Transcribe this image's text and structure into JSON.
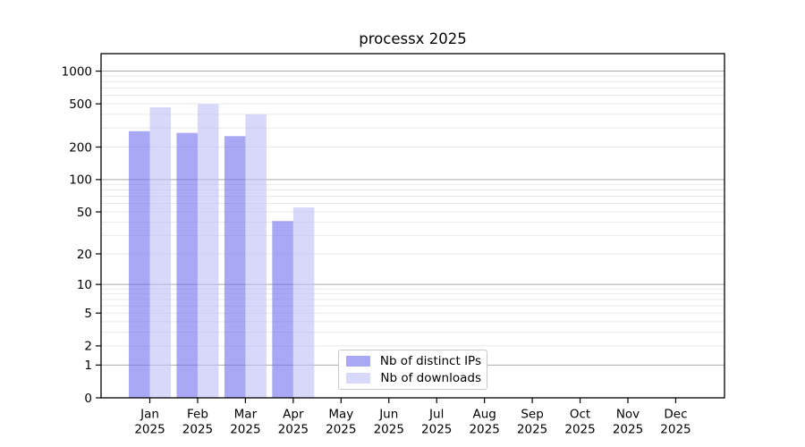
{
  "chart_data": {
    "type": "bar",
    "title": "processx 2025",
    "scale": "log1p",
    "ylim": [
      0,
      1450
    ],
    "grid": true,
    "legend_position": "inside-bottom-center",
    "ylabel": "",
    "xlabel": "",
    "yticks": [
      0,
      1,
      2,
      5,
      10,
      20,
      50,
      100,
      200,
      500,
      1000
    ],
    "categories": [
      {
        "month": "Jan",
        "year": "2025"
      },
      {
        "month": "Feb",
        "year": "2025"
      },
      {
        "month": "Mar",
        "year": "2025"
      },
      {
        "month": "Apr",
        "year": "2025"
      },
      {
        "month": "May",
        "year": "2025"
      },
      {
        "month": "Jun",
        "year": "2025"
      },
      {
        "month": "Jul",
        "year": "2025"
      },
      {
        "month": "Aug",
        "year": "2025"
      },
      {
        "month": "Sep",
        "year": "2025"
      },
      {
        "month": "Oct",
        "year": "2025"
      },
      {
        "month": "Nov",
        "year": "2025"
      },
      {
        "month": "Dec",
        "year": "2025"
      }
    ],
    "series": [
      {
        "name": "Nb of distinct IPs",
        "color": "#6e6eee",
        "values": [
          280,
          270,
          252,
          41,
          0,
          0,
          0,
          0,
          0,
          0,
          0,
          0
        ]
      },
      {
        "name": "Nb of downloads",
        "color": "#bebef8",
        "values": [
          465,
          497,
          400,
          55,
          0,
          0,
          0,
          0,
          0,
          0,
          0,
          0
        ]
      }
    ],
    "colors": {
      "major_grid": "#a9a9a9",
      "minor_grid": "#e9e9e9",
      "spine": "#000000",
      "background": "#ffffff",
      "text": "#000000",
      "bar_opacity": 0.6
    }
  }
}
